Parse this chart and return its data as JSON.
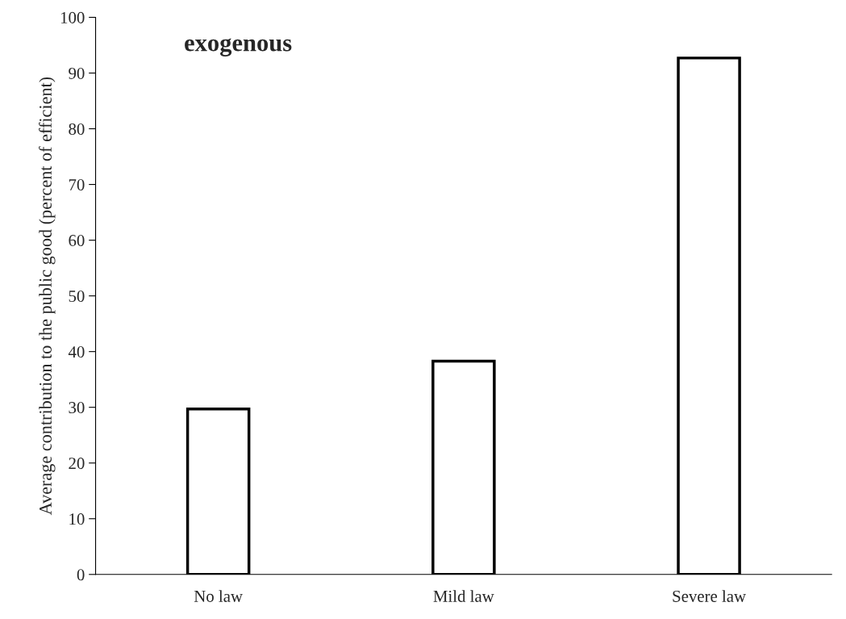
{
  "chart_data": {
    "type": "bar",
    "title": "exogenous",
    "ylabel": "Average contribution to the public good (percent of efficient)",
    "categories": [
      "No law",
      "Mild law",
      "Severe law"
    ],
    "series": [
      {
        "color": "#ffffff",
        "values": [
          29.7,
          38.3,
          92.7
        ]
      }
    ],
    "ylim": [
      0,
      100
    ],
    "yticks": [
      0,
      10,
      20,
      30,
      40,
      50,
      60,
      70,
      80,
      90,
      100
    ],
    "grid": false,
    "legend": false
  }
}
